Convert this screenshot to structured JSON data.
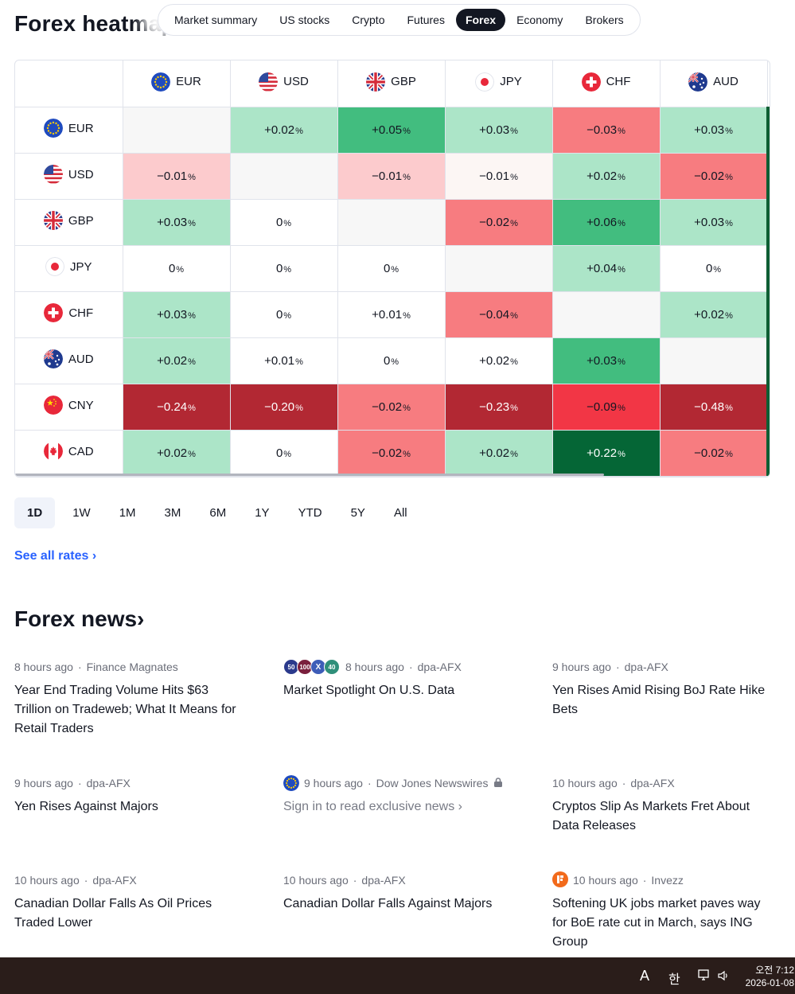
{
  "page": {
    "title": "Forex heatmap"
  },
  "tabs": [
    {
      "label": "Market summary",
      "active": false
    },
    {
      "label": "US stocks",
      "active": false
    },
    {
      "label": "Crypto",
      "active": false
    },
    {
      "label": "Futures",
      "active": false
    },
    {
      "label": "Forex",
      "active": true
    },
    {
      "label": "Economy",
      "active": false
    },
    {
      "label": "Brokers",
      "active": false
    }
  ],
  "heatmap": {
    "columns": [
      "EUR",
      "USD",
      "GBP",
      "JPY",
      "CHF",
      "AUD"
    ],
    "pct_symbol": "%",
    "rows": [
      {
        "currency": "EUR",
        "values": [
          "",
          "+0.02",
          "+0.05",
          "+0.03",
          "−0.03",
          "+0.03"
        ]
      },
      {
        "currency": "USD",
        "values": [
          "−0.01",
          "",
          "−0.01",
          "−0.01",
          "+0.02",
          "−0.02"
        ]
      },
      {
        "currency": "GBP",
        "values": [
          "+0.03",
          "0",
          "",
          "−0.02",
          "+0.06",
          "+0.03"
        ]
      },
      {
        "currency": "JPY",
        "values": [
          "0",
          "0",
          "0",
          "",
          "+0.04",
          "0"
        ]
      },
      {
        "currency": "CHF",
        "values": [
          "+0.03",
          "0",
          "+0.01",
          "−0.04",
          "",
          "+0.02"
        ]
      },
      {
        "currency": "AUD",
        "values": [
          "+0.02",
          "+0.01",
          "0",
          "+0.02",
          "+0.03",
          ""
        ]
      },
      {
        "currency": "CNY",
        "values": [
          "−0.24",
          "−0.20",
          "−0.02",
          "−0.23",
          "−0.09",
          "−0.48"
        ]
      },
      {
        "currency": "CAD",
        "values": [
          "+0.02",
          "0",
          "−0.02",
          "+0.02",
          "+0.22",
          "−0.02"
        ]
      }
    ],
    "cell_colors": [
      [
        "empty",
        "g1",
        "g2",
        "g1",
        "r2",
        "g1"
      ],
      [
        "r1",
        "empty",
        "r1",
        "r0",
        "g1",
        "r2"
      ],
      [
        "g1",
        "neutral",
        "empty",
        "r2",
        "g2",
        "g1"
      ],
      [
        "neutral",
        "neutral",
        "neutral",
        "empty",
        "g1",
        "neutral"
      ],
      [
        "g1",
        "neutral",
        "neutral",
        "r2",
        "empty",
        "g1"
      ],
      [
        "g1",
        "neutral",
        "neutral",
        "neutral",
        "g2",
        "empty"
      ],
      [
        "r4",
        "r4",
        "r2",
        "r4",
        "r3",
        "r4"
      ],
      [
        "g1",
        "neutral",
        "r2",
        "g1",
        "g3",
        "r2"
      ]
    ]
  },
  "periods": [
    {
      "label": "1D",
      "active": true
    },
    {
      "label": "1W",
      "active": false
    },
    {
      "label": "1M",
      "active": false
    },
    {
      "label": "3M",
      "active": false
    },
    {
      "label": "6M",
      "active": false
    },
    {
      "label": "1Y",
      "active": false
    },
    {
      "label": "YTD",
      "active": false
    },
    {
      "label": "5Y",
      "active": false
    },
    {
      "label": "All",
      "active": false
    }
  ],
  "see_all": "See all rates ›",
  "news_title": "Forex news›",
  "news": [
    {
      "time": "8 hours ago",
      "source": "Finance Magnates",
      "headline": "Year End Trading Volume Hits $63 Trillion on Tradeweb; What It Means for Retail Traders",
      "icons": []
    },
    {
      "time": "8 hours ago",
      "source": "dpa-AFX",
      "headline": "Market Spotlight On U.S. Data",
      "icons": [
        "50",
        "100",
        "X",
        "40"
      ]
    },
    {
      "time": "9 hours ago",
      "source": "dpa-AFX",
      "headline": "Yen Rises Amid Rising BoJ Rate Hike Bets",
      "icons": []
    },
    {
      "time": "9 hours ago",
      "source": "dpa-AFX",
      "headline": "Yen Rises Against Majors",
      "icons": []
    },
    {
      "time": "9 hours ago",
      "source": "Dow Jones Newswires",
      "headline": "Sign in to read exclusive news ›",
      "icons": [
        "eu"
      ],
      "locked": true
    },
    {
      "time": "10 hours ago",
      "source": "dpa-AFX",
      "headline": "Cryptos Slip As Markets Fret About Data Releases",
      "icons": []
    },
    {
      "time": "10 hours ago",
      "source": "dpa-AFX",
      "headline": "Canadian Dollar Falls As Oil Prices Traded Lower",
      "icons": []
    },
    {
      "time": "10 hours ago",
      "source": "dpa-AFX",
      "headline": "Canadian Dollar Falls Against Majors",
      "icons": []
    },
    {
      "time": "10 hours ago",
      "source": "Invezz",
      "headline": "Softening UK jobs market paves way for BoE rate cut in March, says ING Group",
      "icons": [
        "invezz"
      ]
    }
  ],
  "taskbar": {
    "ime_a": "A",
    "ime_han": "한",
    "time": "오전 7:12",
    "date": "2026-01-08"
  },
  "colors": {
    "accent": "#2962ff",
    "green_light": "#acE5C8",
    "green_mid": "#42bd7f",
    "green_dark": "#056636",
    "red_light": "#fccbcd",
    "red_mid": "#f77c80",
    "red_strong": "#f23645",
    "red_dark": "#b22833"
  }
}
